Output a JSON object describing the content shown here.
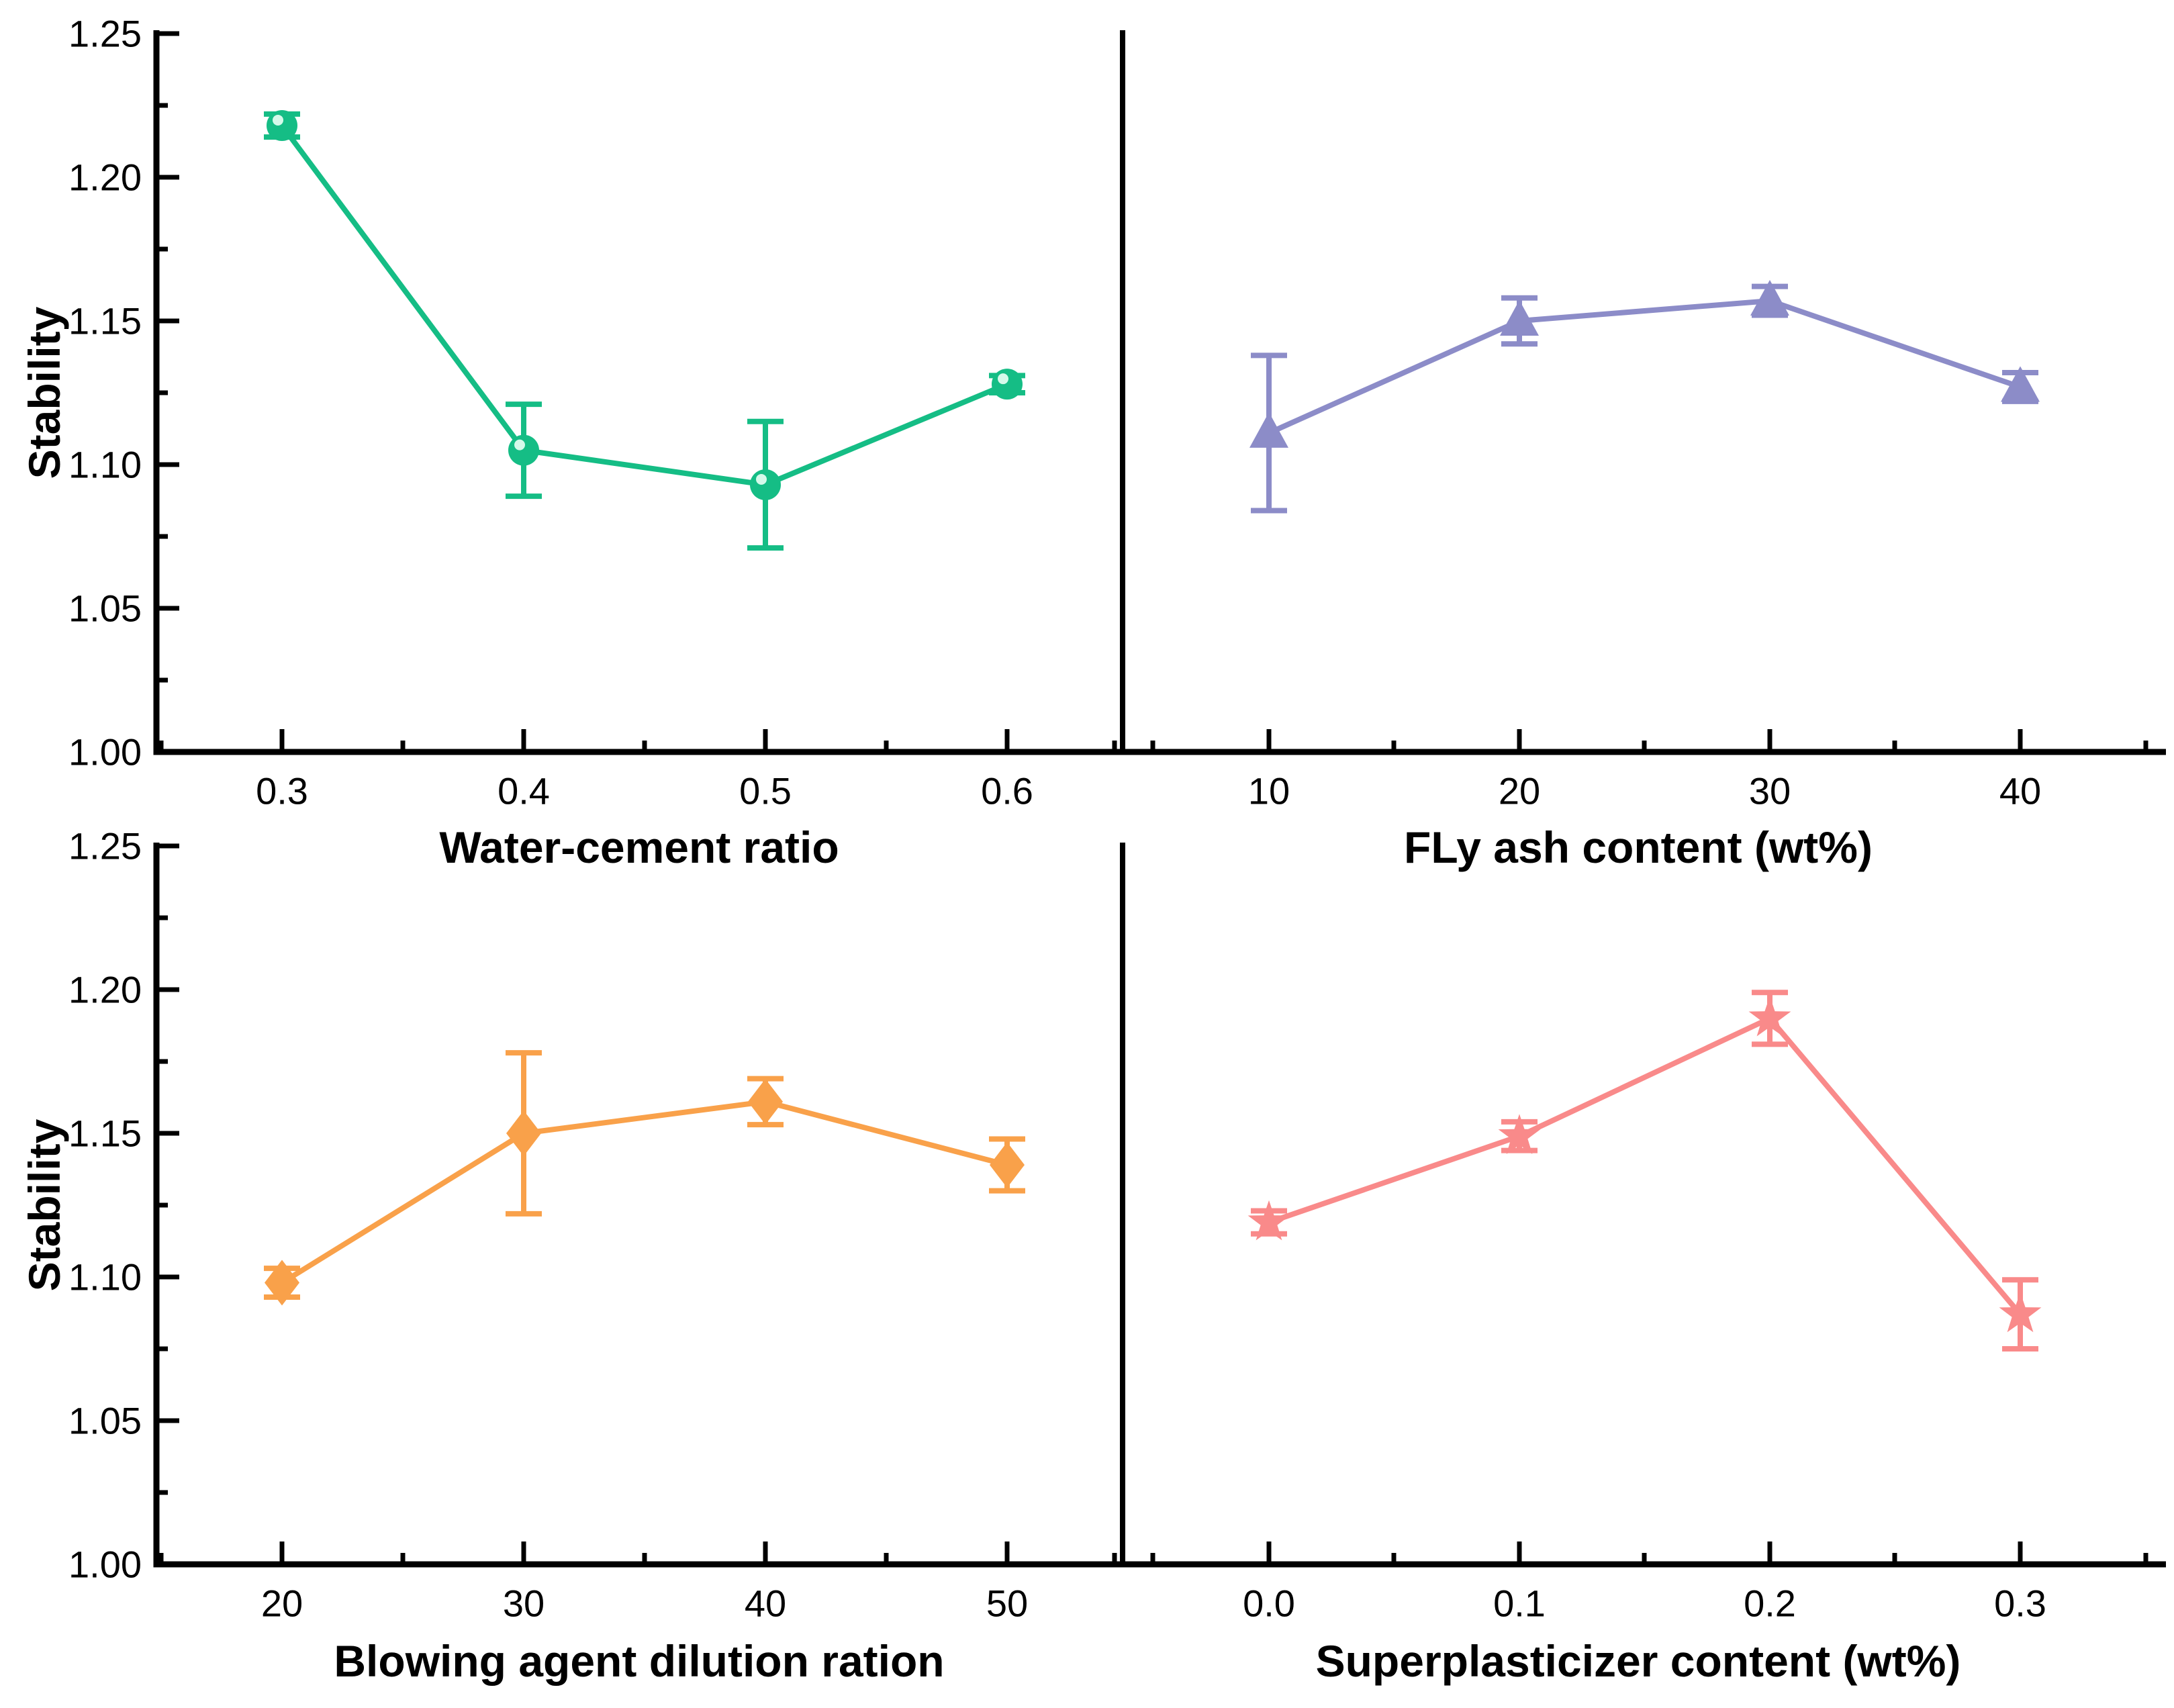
{
  "figure": {
    "background": "#ffffff",
    "ylabel": "Stability",
    "y_axis": {
      "min": 1.0,
      "max": 1.25,
      "major_step": 0.05,
      "minor_step": 0.025,
      "tick_labels": [
        "1.00",
        "1.05",
        "1.10",
        "1.15",
        "1.20",
        "1.25"
      ]
    },
    "grid": false,
    "legend": "none"
  },
  "chart_data": [
    {
      "type": "line",
      "panel": "top-left",
      "marker": "circle",
      "color": "#15BD85",
      "xlabel": "Water-cement ratio",
      "categories": [
        "0.3",
        "0.4",
        "0.5",
        "0.6"
      ],
      "x": [
        0.3,
        0.4,
        0.5,
        0.6
      ],
      "values": [
        1.218,
        1.105,
        1.093,
        1.128
      ],
      "errors": [
        0.004,
        0.016,
        0.022,
        0.003
      ],
      "ylabel": "Stability",
      "ylim": [
        1.0,
        1.25
      ]
    },
    {
      "type": "line",
      "panel": "top-right",
      "marker": "triangle",
      "color": "#8C8CC8",
      "xlabel": "FLy ash content (wt%)",
      "categories": [
        "10",
        "20",
        "30",
        "40"
      ],
      "x": [
        10,
        20,
        30,
        40
      ],
      "values": [
        1.111,
        1.15,
        1.157,
        1.127
      ],
      "errors": [
        0.027,
        0.008,
        0.005,
        0.005
      ],
      "ylabel": "Stability",
      "ylim": [
        1.0,
        1.25
      ]
    },
    {
      "type": "line",
      "panel": "bottom-left",
      "marker": "diamond",
      "color": "#F9A14A",
      "xlabel": "Blowing agent dilution ration",
      "categories": [
        "20",
        "30",
        "40",
        "50"
      ],
      "x": [
        20,
        30,
        40,
        50
      ],
      "values": [
        1.098,
        1.15,
        1.161,
        1.139
      ],
      "errors": [
        0.005,
        0.028,
        0.008,
        0.009
      ],
      "ylabel": "Stability",
      "ylim": [
        1.0,
        1.25
      ]
    },
    {
      "type": "line",
      "panel": "bottom-right",
      "marker": "star",
      "color": "#F98A8A",
      "xlabel": "Superplasticizer content (wt%)",
      "categories": [
        "0.0",
        "0.1",
        "0.2",
        "0.3"
      ],
      "x": [
        0.0,
        0.1,
        0.2,
        0.3
      ],
      "values": [
        1.119,
        1.149,
        1.19,
        1.087
      ],
      "errors": [
        0.004,
        0.005,
        0.009,
        0.012
      ],
      "ylabel": "Stability",
      "ylim": [
        1.0,
        1.25
      ]
    }
  ]
}
